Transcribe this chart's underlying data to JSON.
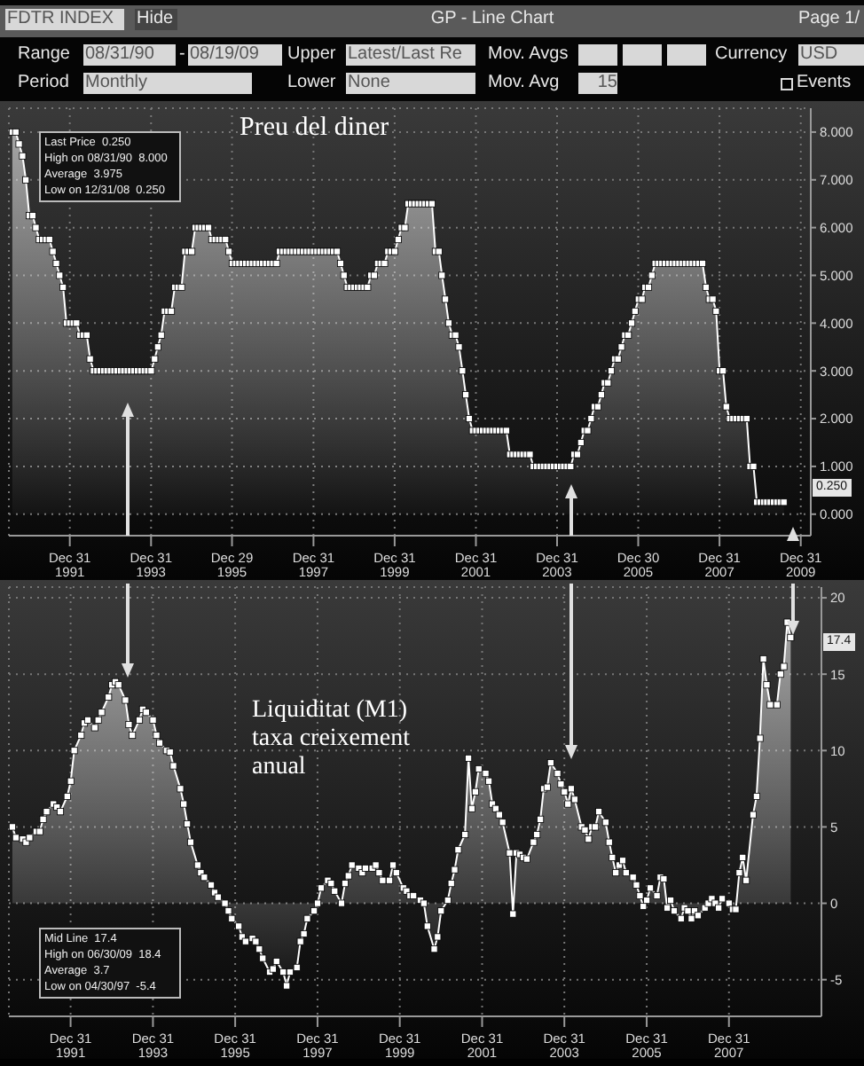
{
  "chart_data": [
    {
      "type": "area",
      "title": "Preu del diner",
      "marker": "square",
      "grid": true,
      "legend": false,
      "annotations": [
        "FDTR INDEX",
        "Hide",
        "GP - Line Chart",
        "Page 1/",
        "Range",
        "08/31/90",
        "-",
        "08/19/09",
        "Upper",
        "Latest/Last Re",
        "Mov. Avgs",
        "Currency",
        "USD",
        "Period",
        "Monthly",
        "Lower",
        "None",
        "Mov. Avg",
        "15",
        "Events",
        "Last Price  0.250",
        "High on 08/31/90  8.000",
        "Average  3.975",
        "Low on 12/31/08  0.250",
        "0.250"
      ],
      "xlim": [
        "1990-07-01",
        "2010-03-31"
      ],
      "xticks": [
        {
          "value": "1991-12-31",
          "label": "Dec 31\n1991"
        },
        {
          "value": "1993-12-31",
          "label": "Dec 31\n1993"
        },
        {
          "value": "1995-12-29",
          "label": "Dec 29\n1995"
        },
        {
          "value": "1997-12-31",
          "label": "Dec 31\n1997"
        },
        {
          "value": "1999-12-31",
          "label": "Dec 31\n1999"
        },
        {
          "value": "2001-12-31",
          "label": "Dec 31\n2001"
        },
        {
          "value": "2003-12-31",
          "label": "Dec 31\n2003"
        },
        {
          "value": "2005-12-30",
          "label": "Dec 30\n2005"
        },
        {
          "value": "2007-12-31",
          "label": "Dec 31\n2007"
        },
        {
          "value": "2009-12-31",
          "label": "Dec 31\n2009"
        }
      ],
      "ylim": [
        -0.45,
        8.5
      ],
      "yticks": [
        {
          "value": 0,
          "label": "0.000"
        },
        {
          "value": 1,
          "label": "1.000"
        },
        {
          "value": 2,
          "label": "2.000"
        },
        {
          "value": 3,
          "label": "3.000"
        },
        {
          "value": 4,
          "label": "4.000"
        },
        {
          "value": 5,
          "label": "5.000"
        },
        {
          "value": 6,
          "label": "6.000"
        },
        {
          "value": 7,
          "label": "7.000"
        },
        {
          "value": 8,
          "label": "8.000"
        }
      ],
      "series": [
        {
          "color": "#ffffff",
          "x": [
            "1990-08",
            "1990-09",
            "1990-10",
            "1990-11",
            "1990-12",
            "1991-01",
            "1991-02",
            "1991-03",
            "1991-04",
            "1991-05",
            "1991-06",
            "1991-07",
            "1991-08",
            "1991-09",
            "1991-10",
            "1991-11",
            "1991-12",
            "1992-01",
            "1992-02",
            "1992-03",
            "1992-04",
            "1992-05",
            "1992-06",
            "1992-07",
            "1992-08",
            "1992-09",
            "1992-10",
            "1992-11",
            "1992-12",
            "1993-01",
            "1993-02",
            "1993-03",
            "1993-04",
            "1993-05",
            "1993-06",
            "1993-07",
            "1993-08",
            "1993-09",
            "1993-10",
            "1993-11",
            "1993-12",
            "1994-01",
            "1994-02",
            "1994-03",
            "1994-04",
            "1994-05",
            "1994-06",
            "1994-07",
            "1994-08",
            "1994-09",
            "1994-10",
            "1994-11",
            "1994-12",
            "1995-01",
            "1995-02",
            "1995-03",
            "1995-04",
            "1995-05",
            "1995-06",
            "1995-07",
            "1995-08",
            "1995-09",
            "1995-10",
            "1995-11",
            "1995-12",
            "1996-01",
            "1996-02",
            "1996-03",
            "1996-04",
            "1996-05",
            "1996-06",
            "1996-07",
            "1996-08",
            "1996-09",
            "1996-10",
            "1996-11",
            "1996-12",
            "1997-01",
            "1997-02",
            "1997-03",
            "1997-04",
            "1997-05",
            "1997-06",
            "1997-07",
            "1997-08",
            "1997-09",
            "1997-10",
            "1997-11",
            "1997-12",
            "1998-01",
            "1998-02",
            "1998-03",
            "1998-04",
            "1998-05",
            "1998-06",
            "1998-07",
            "1998-08",
            "1998-09",
            "1998-10",
            "1998-11",
            "1998-12",
            "1999-01",
            "1999-02",
            "1999-03",
            "1999-04",
            "1999-05",
            "1999-06",
            "1999-07",
            "1999-08",
            "1999-09",
            "1999-10",
            "1999-11",
            "1999-12",
            "2000-01",
            "2000-02",
            "2000-03",
            "2000-04",
            "2000-05",
            "2000-06",
            "2000-07",
            "2000-08",
            "2000-09",
            "2000-10",
            "2000-11",
            "2000-12",
            "2001-01",
            "2001-02",
            "2001-03",
            "2001-04",
            "2001-05",
            "2001-06",
            "2001-07",
            "2001-08",
            "2001-09",
            "2001-10",
            "2001-11",
            "2001-12",
            "2002-01",
            "2002-02",
            "2002-03",
            "2002-04",
            "2002-05",
            "2002-06",
            "2002-07",
            "2002-08",
            "2002-09",
            "2002-10",
            "2002-11",
            "2002-12",
            "2003-01",
            "2003-02",
            "2003-03",
            "2003-04",
            "2003-05",
            "2003-06",
            "2003-07",
            "2003-08",
            "2003-09",
            "2003-10",
            "2003-11",
            "2003-12",
            "2004-01",
            "2004-02",
            "2004-03",
            "2004-04",
            "2004-05",
            "2004-06",
            "2004-07",
            "2004-08",
            "2004-09",
            "2004-10",
            "2004-11",
            "2004-12",
            "2005-01",
            "2005-02",
            "2005-03",
            "2005-04",
            "2005-05",
            "2005-06",
            "2005-07",
            "2005-08",
            "2005-09",
            "2005-10",
            "2005-11",
            "2005-12",
            "2006-01",
            "2006-02",
            "2006-03",
            "2006-04",
            "2006-05",
            "2006-06",
            "2006-07",
            "2006-08",
            "2006-09",
            "2006-10",
            "2006-11",
            "2006-12",
            "2007-01",
            "2007-02",
            "2007-03",
            "2007-04",
            "2007-05",
            "2007-06",
            "2007-07",
            "2007-08",
            "2007-09",
            "2007-10",
            "2007-11",
            "2007-12",
            "2008-01",
            "2008-02",
            "2008-03",
            "2008-04",
            "2008-05",
            "2008-06",
            "2008-07",
            "2008-08",
            "2008-09",
            "2008-10",
            "2008-11",
            "2008-12",
            "2009-01",
            "2009-02",
            "2009-03",
            "2009-04",
            "2009-05",
            "2009-06",
            "2009-07",
            "2009-08"
          ],
          "values": [
            8,
            8,
            7.75,
            7.5,
            7,
            6.25,
            6.25,
            6,
            5.75,
            5.75,
            5.75,
            5.75,
            5.5,
            5.25,
            5,
            4.75,
            4,
            4,
            4,
            4,
            3.75,
            3.75,
            3.75,
            3.25,
            3,
            3,
            3,
            3,
            3,
            3,
            3,
            3,
            3,
            3,
            3,
            3,
            3,
            3,
            3,
            3,
            3,
            3,
            3.25,
            3.5,
            3.75,
            4.25,
            4.25,
            4.25,
            4.75,
            4.75,
            4.75,
            5.5,
            5.5,
            5.5,
            6,
            6,
            6,
            6,
            6,
            5.75,
            5.75,
            5.75,
            5.75,
            5.75,
            5.5,
            5.25,
            5.25,
            5.25,
            5.25,
            5.25,
            5.25,
            5.25,
            5.25,
            5.25,
            5.25,
            5.25,
            5.25,
            5.25,
            5.25,
            5.5,
            5.5,
            5.5,
            5.5,
            5.5,
            5.5,
            5.5,
            5.5,
            5.5,
            5.5,
            5.5,
            5.5,
            5.5,
            5.5,
            5.5,
            5.5,
            5.5,
            5.5,
            5.25,
            5,
            4.75,
            4.75,
            4.75,
            4.75,
            4.75,
            4.75,
            4.75,
            5,
            5,
            5.25,
            5.25,
            5.25,
            5.5,
            5.5,
            5.5,
            5.75,
            6,
            6,
            6.5,
            6.5,
            6.5,
            6.5,
            6.5,
            6.5,
            6.5,
            6.5,
            5.5,
            5.5,
            5,
            4.5,
            4,
            3.75,
            3.75,
            3.5,
            3,
            2.5,
            2,
            1.75,
            1.75,
            1.75,
            1.75,
            1.75,
            1.75,
            1.75,
            1.75,
            1.75,
            1.75,
            1.75,
            1.25,
            1.25,
            1.25,
            1.25,
            1.25,
            1.25,
            1.25,
            1,
            1,
            1,
            1,
            1,
            1,
            1,
            1,
            1,
            1,
            1,
            1,
            1.25,
            1.25,
            1.5,
            1.75,
            1.75,
            2,
            2.25,
            2.25,
            2.5,
            2.75,
            2.75,
            3,
            3.25,
            3.25,
            3.5,
            3.75,
            3.75,
            4,
            4.25,
            4.5,
            4.5,
            4.75,
            4.75,
            5,
            5.25,
            5.25,
            5.25,
            5.25,
            5.25,
            5.25,
            5.25,
            5.25,
            5.25,
            5.25,
            5.25,
            5.25,
            5.25,
            5.25,
            5.25,
            4.75,
            4.5,
            4.5,
            4.25,
            3,
            3,
            2.25,
            2,
            2,
            2,
            2,
            2,
            2,
            1,
            1,
            0.25,
            0.25,
            0.25,
            0.25,
            0.25,
            0.25,
            0.25,
            0.25,
            0.25
          ]
        }
      ]
    },
    {
      "type": "area",
      "title": "Liquiditat (M1)\ntaxa creixement\nanual",
      "marker": "square",
      "grid": true,
      "legend": false,
      "annotations": [
        "Mid Line  17.4",
        "High on 06/30/09  18.4",
        "Average  3.7",
        "Low on 04/30/97  -5.4",
        "17.4"
      ],
      "xlim": [
        "1990-07-01",
        "2010-03-31"
      ],
      "xticks": [
        {
          "value": "1991-12-31",
          "label": "Dec 31\n1991"
        },
        {
          "value": "1993-12-31",
          "label": "Dec 31\n1993"
        },
        {
          "value": "1995-12-31",
          "label": "Dec 31\n1995"
        },
        {
          "value": "1997-12-31",
          "label": "Dec 31\n1997"
        },
        {
          "value": "1999-12-31",
          "label": "Dec 31\n1999"
        },
        {
          "value": "2001-12-31",
          "label": "Dec 31\n2001"
        },
        {
          "value": "2003-12-31",
          "label": "Dec 31\n2003"
        },
        {
          "value": "2005-12-31",
          "label": "Dec 31\n2005"
        },
        {
          "value": "2007-12-31",
          "label": "Dec 31\n2007"
        }
      ],
      "ylim": [
        -7.4,
        20.7
      ],
      "yticks": [
        -5,
        0,
        5,
        10,
        15,
        20
      ],
      "series": [
        {
          "color": "#ffffff",
          "x": [
            "1990-08",
            "1990-09",
            "1990-11",
            "1990-12",
            "1991-01",
            "1991-03",
            "1991-04",
            "1991-05",
            "1991-06",
            "1991-08",
            "1991-09",
            "1991-10",
            "1991-12",
            "1992-01",
            "1992-02",
            "1992-04",
            "1992-05",
            "1992-06",
            "1992-08",
            "1992-09",
            "1992-10",
            "1992-12",
            "1993-01",
            "1993-02",
            "1993-03",
            "1993-05",
            "1993-06",
            "1993-07",
            "1993-09",
            "1993-10",
            "1993-11",
            "1994-01",
            "1994-02",
            "1994-03",
            "1994-05",
            "1994-06",
            "1994-07",
            "1994-09",
            "1994-10",
            "1994-11",
            "1994-12",
            "1995-02",
            "1995-03",
            "1995-04",
            "1995-06",
            "1995-07",
            "1995-08",
            "1995-10",
            "1995-11",
            "1995-12",
            "1996-02",
            "1996-03",
            "1996-04",
            "1996-06",
            "1996-07",
            "1996-08",
            "1996-09",
            "1996-11",
            "1996-12",
            "1997-01",
            "1997-03",
            "1997-04",
            "1997-05",
            "1997-07",
            "1997-08",
            "1997-09",
            "1997-10",
            "1997-12",
            "1998-01",
            "1998-02",
            "1998-04",
            "1998-05",
            "1998-06",
            "1998-08",
            "1998-09",
            "1998-10",
            "1998-11",
            "1999-01",
            "1999-02",
            "1999-03",
            "1999-05",
            "1999-06",
            "1999-07",
            "1999-08",
            "1999-10",
            "1999-11",
            "1999-12",
            "2000-02",
            "2000-03",
            "2000-04",
            "2000-05",
            "2000-07",
            "2000-08",
            "2000-09",
            "2000-11",
            "2000-12",
            "2001-01",
            "2001-03",
            "2001-04",
            "2001-05",
            "2001-06",
            "2001-08",
            "2001-09",
            "2001-10",
            "2001-11",
            "2001-12",
            "2002-02",
            "2002-03",
            "2002-04",
            "2002-05",
            "2002-06",
            "2002-07",
            "2002-09",
            "2002-10",
            "2002-11",
            "2002-12",
            "2003-01",
            "2003-02",
            "2003-04",
            "2003-05",
            "2003-06",
            "2003-07",
            "2003-08",
            "2003-09",
            "2003-11",
            "2003-12",
            "2004-01",
            "2004-02",
            "2004-03",
            "2004-04",
            "2004-06",
            "2004-07",
            "2004-08",
            "2004-09",
            "2004-10",
            "2004-11",
            "2005-01",
            "2005-02",
            "2005-03",
            "2005-04",
            "2005-05",
            "2005-06",
            "2005-07",
            "2005-09",
            "2005-10",
            "2005-11",
            "2005-12",
            "2006-01",
            "2006-02",
            "2006-04",
            "2006-05",
            "2006-06",
            "2006-07",
            "2006-08",
            "2006-09",
            "2006-11",
            "2006-12",
            "2007-01",
            "2007-02",
            "2007-03",
            "2007-04",
            "2007-06",
            "2007-07",
            "2007-08",
            "2007-09",
            "2007-10",
            "2007-11",
            "2008-01",
            "2008-02",
            "2008-03",
            "2008-04",
            "2008-05",
            "2008-06",
            "2008-08",
            "2008-09",
            "2008-10",
            "2008-11",
            "2008-12",
            "2009-01",
            "2009-03",
            "2009-04",
            "2009-05",
            "2009-06",
            "2009-07"
          ],
          "values": [
            5,
            4.3,
            4.2,
            4,
            4.3,
            4.7,
            4.7,
            5.5,
            6,
            6.5,
            6.3,
            6,
            7,
            8,
            10,
            11,
            11.8,
            12,
            11.5,
            12,
            12.5,
            13.5,
            14.3,
            14.5,
            14.3,
            13.3,
            11.7,
            11,
            12,
            12.7,
            12.5,
            12,
            11,
            10.5,
            10,
            9.9,
            9,
            7.5,
            6.5,
            5.2,
            4,
            2.5,
            2,
            1.7,
            1.2,
            0.7,
            0.4,
            0,
            -0.5,
            -1,
            -1.5,
            -2.2,
            -2.5,
            -2.3,
            -2.5,
            -3,
            -3.6,
            -4.5,
            -4.3,
            -3.8,
            -4.5,
            -5.4,
            -4.5,
            -4.2,
            -2.5,
            -2,
            -1,
            -0.5,
            0,
            1,
            1.5,
            1.3,
            0.8,
            0,
            1.3,
            1.8,
            2.5,
            2.3,
            2,
            2.3,
            2.3,
            2.5,
            2,
            1.5,
            1.5,
            2.5,
            2,
            1,
            0.8,
            0.5,
            0.5,
            0.2,
            0,
            -1.5,
            -3,
            -2.2,
            -0.5,
            0.2,
            1.3,
            2.2,
            3.5,
            4.5,
            9.5,
            6.2,
            7.3,
            8.8,
            8.5,
            8,
            6.5,
            6.2,
            5.8,
            5.3,
            3.3,
            -0.7,
            3.3,
            3.2,
            3,
            2.9,
            4,
            4.5,
            5.5,
            7.5,
            7.6,
            9.2,
            8.5,
            7.8,
            7.3,
            6.5,
            7.5,
            6.8,
            5,
            4.8,
            4.2,
            5,
            5,
            6,
            5.3,
            4,
            3,
            2,
            2.5,
            2.8,
            2,
            1.7,
            1.2,
            0.5,
            -0.2,
            0.2,
            1,
            0.5,
            1.7,
            1.6,
            -0.3,
            0.2,
            -0.5,
            -1,
            -0.3,
            -0.5,
            -1,
            -0.5,
            -0.8,
            -0.3,
            0,
            0.3,
            0,
            -0.3,
            0.3,
            0,
            -0.4,
            -0.4,
            2,
            3,
            1.5,
            5.8,
            7,
            10.8,
            16,
            14.3,
            13,
            13,
            15,
            15.5,
            18.4,
            17.4
          ]
        }
      ]
    }
  ]
}
